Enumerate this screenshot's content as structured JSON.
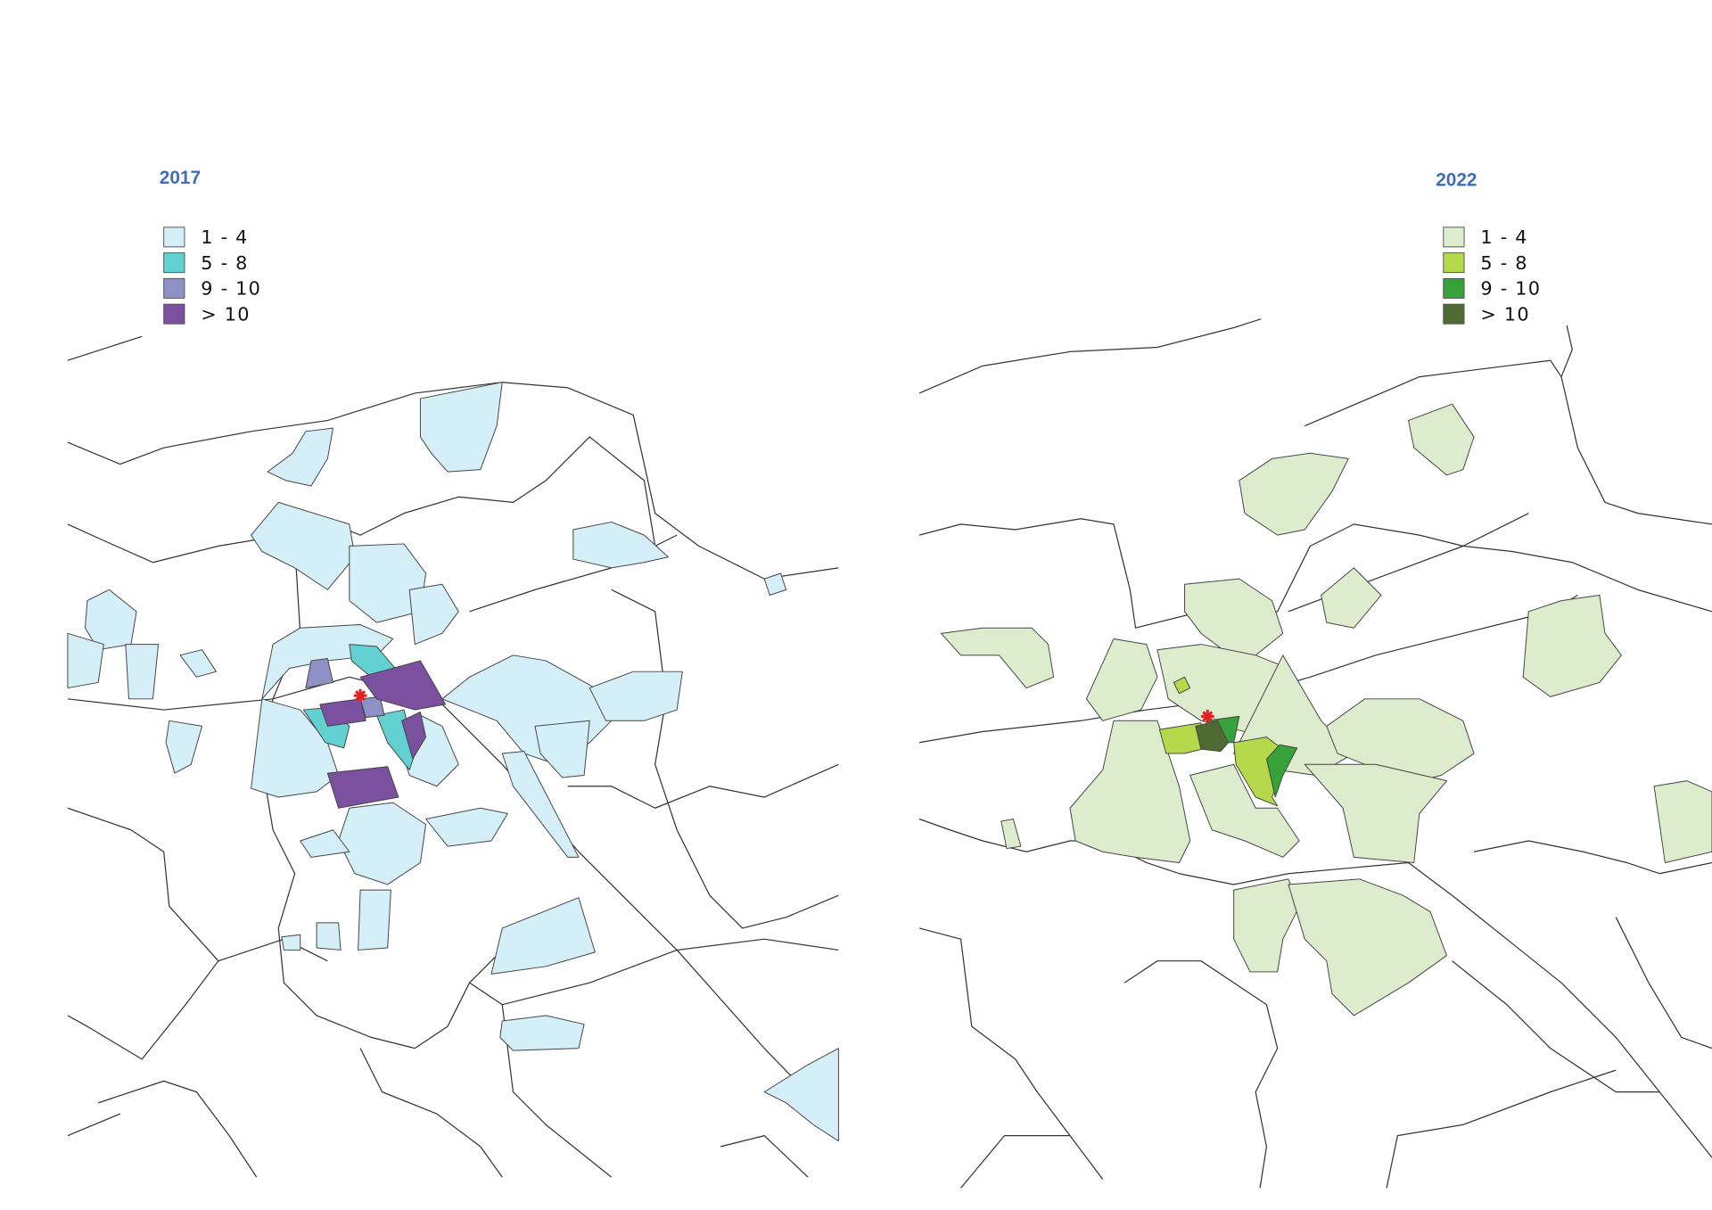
{
  "maps": [
    {
      "title": "2017",
      "legend": [
        {
          "label": "1 - 4",
          "color": "#d5eff9"
        },
        {
          "label": "5 - 8",
          "color": "#63d1d1"
        },
        {
          "label": "9 - 10",
          "color": "#8d91c6"
        },
        {
          "label": "> 10",
          "color": "#7b509f"
        }
      ]
    },
    {
      "title": "2022",
      "legend": [
        {
          "label": "1 - 4",
          "color": "#ddeccd"
        },
        {
          "label": "5 - 8",
          "color": "#b4d94b"
        },
        {
          "label": "9 - 10",
          "color": "#38a23a"
        },
        {
          "label": "> 10",
          "color": "#4f6b33"
        }
      ]
    }
  ]
}
